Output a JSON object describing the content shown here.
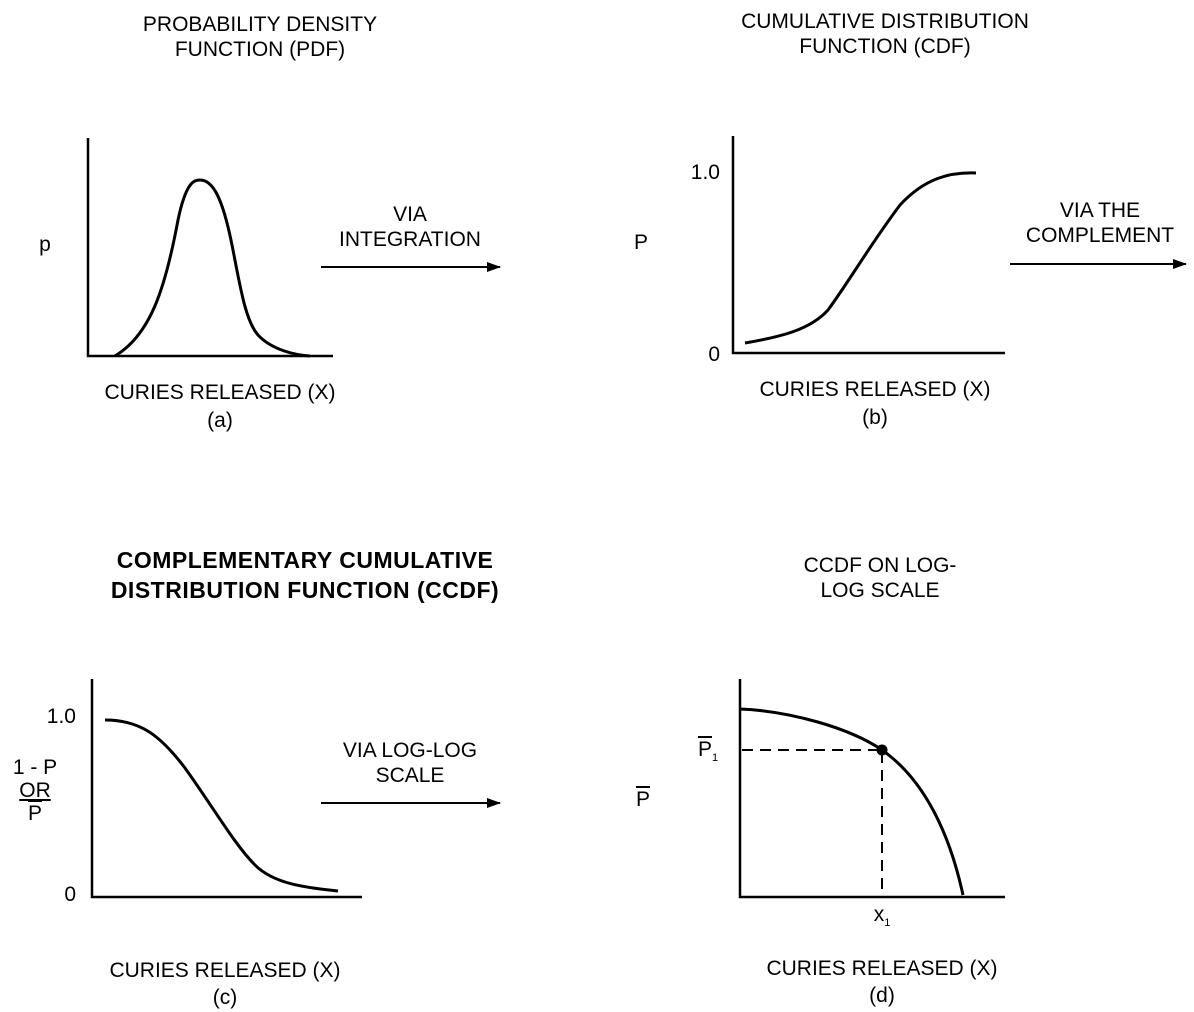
{
  "panels": {
    "a": {
      "title_line1": "PROBABILITY DENSITY",
      "title_line2": "FUNCTION (PDF)",
      "y_label": "p",
      "x_label": "CURIES RELEASED (X)",
      "caption": "(a)"
    },
    "b": {
      "title_line1": "CUMULATIVE DISTRIBUTION",
      "title_line2": "FUNCTION (CDF)",
      "y_label": "P",
      "y_tick_top": "1.0",
      "y_tick_bottom": "0",
      "x_label": "CURIES RELEASED (X)",
      "caption": "(b)"
    },
    "c": {
      "title_line1": "COMPLEMENTARY CUMULATIVE",
      "title_line2": "DISTRIBUTION FUNCTION (CCDF)",
      "y_label_line1": "1 - P",
      "y_label_line2": "OR",
      "y_label_line3": "P",
      "y_tick_top": "1.0",
      "y_tick_bottom": "0",
      "x_label": "CURIES RELEASED (X)",
      "caption": "(c)"
    },
    "d": {
      "title_line1": "CCDF ON LOG-",
      "title_line2": "LOG SCALE",
      "y_label": "P",
      "point_y_label": "P",
      "point_y_sub": "1",
      "point_x_label": "x",
      "point_x_sub": "1",
      "x_label": "CURIES RELEASED (X)",
      "caption": "(d)"
    }
  },
  "arrows": {
    "integration_line1": "VIA",
    "integration_line2": "INTEGRATION",
    "complement_line1": "VIA THE",
    "complement_line2": "COMPLEMENT",
    "loglog_line1": "VIA LOG-LOG",
    "loglog_line2": "SCALE"
  }
}
